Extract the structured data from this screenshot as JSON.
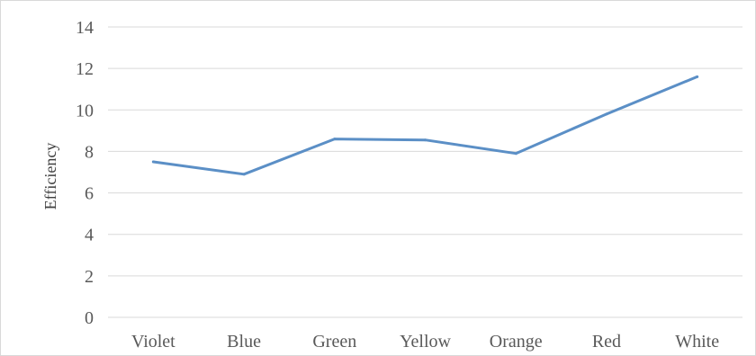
{
  "chart_data": {
    "type": "line",
    "categories": [
      "Violet",
      "Blue",
      "Green",
      "Yellow",
      "Orange",
      "Red",
      "White"
    ],
    "series": [
      {
        "values": [
          7.5,
          6.9,
          8.6,
          8.55,
          7.9,
          9.8,
          11.6
        ],
        "color": "#5b8fc6"
      }
    ],
    "title": "",
    "xlabel": "",
    "ylabel": "Efficiency",
    "ylim": [
      0,
      14
    ],
    "yticks": [
      "0",
      "2",
      "4",
      "6",
      "8",
      "10",
      "12",
      "14"
    ],
    "grid": true,
    "legend": "none"
  }
}
